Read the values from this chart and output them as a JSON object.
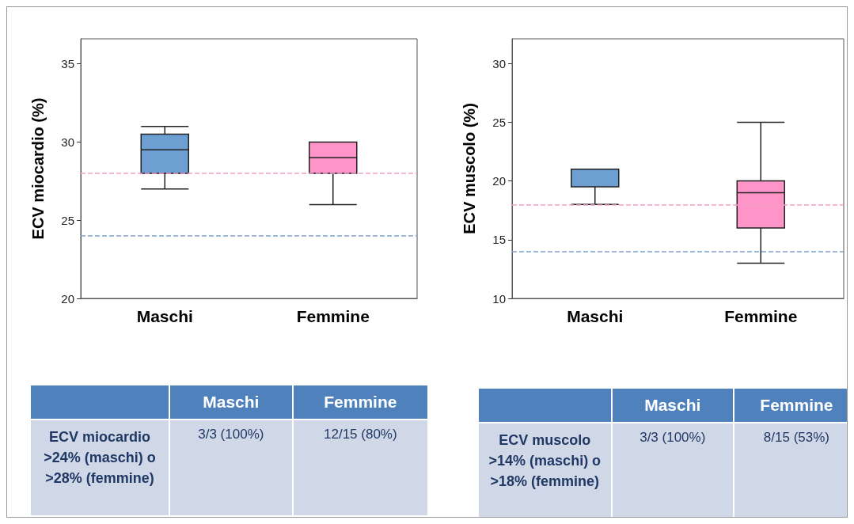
{
  "chart_data": [
    {
      "type": "box",
      "categories": [
        "Maschi",
        "Femmine"
      ],
      "ylabel": "ECV miocardio (%)",
      "ylim": [
        20,
        36.6
      ],
      "yticks": [
        20,
        25,
        30,
        35
      ],
      "grid": false,
      "colors": [
        "#6d9fd3",
        "#ff94c8"
      ],
      "boxes": [
        {
          "low": 27,
          "q1": 28,
          "median": 29.5,
          "q3": 30.5,
          "high": 31
        },
        {
          "low": 26,
          "q1": 28,
          "median": 29,
          "q3": 30,
          "high": 30
        }
      ],
      "ref_lines": [
        {
          "axis": "y",
          "value": 28,
          "color": "#f0a0c8",
          "line_style": "dashed"
        },
        {
          "axis": "y",
          "value": 24,
          "color": "#7fa3c8",
          "line_style": "dashed"
        }
      ]
    },
    {
      "type": "box",
      "categories": [
        "Maschi",
        "Femmine"
      ],
      "ylabel": "ECV muscolo (%)",
      "ylim": [
        10,
        32.1
      ],
      "yticks": [
        10,
        15,
        20,
        25,
        30
      ],
      "grid": false,
      "colors": [
        "#6d9fd3",
        "#ff94c8"
      ],
      "boxes": [
        {
          "low": 18,
          "q1": 19.5,
          "median": 21,
          "q3": 21,
          "high": 21
        },
        {
          "low": 13,
          "q1": 16,
          "median": 19,
          "q3": 20,
          "high": 25
        }
      ],
      "ref_lines": [
        {
          "axis": "y",
          "value": 18,
          "color": "#f0a0c8",
          "line_style": "dashed"
        },
        {
          "axis": "y",
          "value": 14,
          "color": "#7fa3c8",
          "line_style": "dashed"
        }
      ]
    },
    {
      "type": "other",
      "categories": [
        "Maschi",
        "Femmine"
      ],
      "y_categories": [
        "ECV miocardio >24% (maschi) o >28% (femmine)"
      ],
      "cell_labels": [
        [
          "3/3 (100%)",
          "12/15 (80%)"
        ]
      ]
    },
    {
      "type": "other",
      "categories": [
        "Maschi",
        "Femmine"
      ],
      "y_categories": [
        "ECV muscolo >14% (maschi) o >18% (femmine)"
      ],
      "cell_labels": [
        [
          "3/3 (100%)",
          "8/15 (53%)"
        ]
      ]
    }
  ]
}
